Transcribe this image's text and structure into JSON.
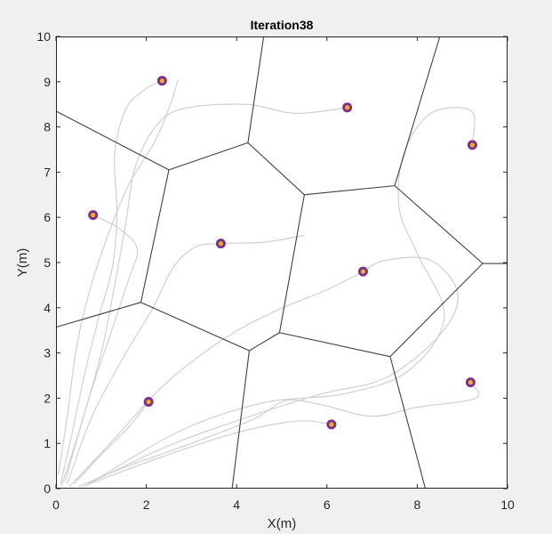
{
  "chart_data": {
    "type": "scatter",
    "title": "Iteration38",
    "xlabel": "X(m)",
    "ylabel": "Y(m)",
    "xlim": [
      0,
      10
    ],
    "ylim": [
      0,
      10
    ],
    "xticks": [
      0,
      2,
      4,
      6,
      8,
      10
    ],
    "yticks": [
      0,
      1,
      2,
      3,
      4,
      5,
      6,
      7,
      8,
      9,
      10
    ],
    "grid": false,
    "legend": "none",
    "colors": {
      "agent_outer": "#7e2f8e",
      "agent_inner": "#edb120",
      "voronoi_edge": "#404040",
      "trajectory": "#d0d0d0",
      "plot_background": "#ffffff",
      "figure_background": "#f0f0f0"
    },
    "agents": [
      {
        "x": 2.35,
        "y": 9.02
      },
      {
        "x": 6.45,
        "y": 8.43
      },
      {
        "x": 9.22,
        "y": 7.6
      },
      {
        "x": 0.82,
        "y": 6.05
      },
      {
        "x": 3.65,
        "y": 5.42
      },
      {
        "x": 6.8,
        "y": 4.8
      },
      {
        "x": 2.05,
        "y": 1.92
      },
      {
        "x": 6.1,
        "y": 1.42
      },
      {
        "x": 9.18,
        "y": 2.35
      }
    ],
    "voronoi_edges": [
      [
        [
          0,
          8.35
        ],
        [
          2.5,
          7.05
        ]
      ],
      [
        [
          2.5,
          7.05
        ],
        [
          4.25,
          7.65
        ]
      ],
      [
        [
          4.25,
          7.65
        ],
        [
          4.6,
          10
        ]
      ],
      [
        [
          4.25,
          7.65
        ],
        [
          5.5,
          6.5
        ]
      ],
      [
        [
          5.5,
          6.5
        ],
        [
          7.5,
          6.7
        ]
      ],
      [
        [
          7.5,
          6.7
        ],
        [
          8.5,
          10
        ]
      ],
      [
        [
          7.5,
          6.7
        ],
        [
          9.45,
          4.98
        ]
      ],
      [
        [
          9.45,
          4.98
        ],
        [
          10,
          4.98
        ]
      ],
      [
        [
          2.5,
          7.05
        ],
        [
          1.88,
          4.12
        ]
      ],
      [
        [
          1.88,
          4.12
        ],
        [
          0,
          3.57
        ]
      ],
      [
        [
          1.88,
          4.12
        ],
        [
          4.28,
          3.05
        ]
      ],
      [
        [
          4.28,
          3.05
        ],
        [
          4.95,
          3.45
        ]
      ],
      [
        [
          4.95,
          3.45
        ],
        [
          5.5,
          6.5
        ]
      ],
      [
        [
          4.95,
          3.45
        ],
        [
          7.4,
          2.92
        ]
      ],
      [
        [
          7.4,
          2.92
        ],
        [
          9.45,
          4.98
        ]
      ],
      [
        [
          7.4,
          2.92
        ],
        [
          8.18,
          0
        ]
      ],
      [
        [
          4.28,
          3.05
        ],
        [
          3.9,
          0
        ]
      ]
    ],
    "trajectories": [
      [
        [
          0.1,
          0.1
        ],
        [
          0.35,
          1.2
        ],
        [
          0.65,
          2.6
        ],
        [
          0.95,
          3.8
        ],
        [
          1.25,
          4.9
        ],
        [
          1.35,
          6.1
        ],
        [
          1.3,
          7.4
        ],
        [
          1.55,
          8.4
        ],
        [
          2.0,
          8.85
        ],
        [
          2.35,
          9.02
        ]
      ],
      [
        [
          0.12,
          0.05
        ],
        [
          0.55,
          1.4
        ],
        [
          1.0,
          3.0
        ],
        [
          1.3,
          4.5
        ],
        [
          1.55,
          5.9
        ],
        [
          1.75,
          7.1
        ],
        [
          2.2,
          8.0
        ],
        [
          2.8,
          8.4
        ],
        [
          4.2,
          8.5
        ],
        [
          5.3,
          8.3
        ],
        [
          6.45,
          8.43
        ]
      ],
      [
        [
          0.05,
          0.3
        ],
        [
          0.25,
          1.6
        ],
        [
          0.45,
          3.1
        ],
        [
          0.75,
          4.4
        ],
        [
          1.15,
          5.6
        ],
        [
          1.6,
          6.7
        ],
        [
          2.2,
          7.7
        ],
        [
          2.55,
          8.55
        ],
        [
          2.7,
          9.05
        ]
      ],
      [
        [
          0.2,
          0.15
        ],
        [
          0.7,
          1.9
        ],
        [
          1.2,
          3.4
        ],
        [
          1.6,
          4.6
        ],
        [
          1.8,
          5.3
        ],
        [
          1.4,
          5.75
        ],
        [
          0.82,
          6.05
        ]
      ],
      [
        [
          0.25,
          0.1
        ],
        [
          0.8,
          1.6
        ],
        [
          1.55,
          3.0
        ],
        [
          2.15,
          4.0
        ],
        [
          2.6,
          4.9
        ],
        [
          3.1,
          5.35
        ],
        [
          3.65,
          5.42
        ],
        [
          4.6,
          5.45
        ],
        [
          5.5,
          5.6
        ]
      ],
      [
        [
          0.3,
          0.05
        ],
        [
          1.2,
          1.0
        ],
        [
          2.4,
          2.3
        ],
        [
          3.7,
          3.3
        ],
        [
          4.8,
          3.9
        ],
        [
          6.0,
          4.4
        ],
        [
          6.8,
          4.8
        ]
      ],
      [
        [
          0.4,
          0.1
        ],
        [
          1.0,
          0.75
        ],
        [
          1.6,
          1.35
        ],
        [
          2.05,
          1.92
        ]
      ],
      [
        [
          0.5,
          0.05
        ],
        [
          1.6,
          0.5
        ],
        [
          3.0,
          1.0
        ],
        [
          4.4,
          1.55
        ],
        [
          5.1,
          1.95
        ],
        [
          5.9,
          1.85
        ],
        [
          7.0,
          1.6
        ],
        [
          8.0,
          1.8
        ],
        [
          9.3,
          2.0
        ],
        [
          9.18,
          2.35
        ]
      ],
      [
        [
          0.6,
          0.05
        ],
        [
          2.2,
          0.65
        ],
        [
          3.7,
          1.15
        ],
        [
          4.7,
          1.4
        ],
        [
          5.5,
          1.5
        ],
        [
          6.1,
          1.42
        ]
      ],
      [
        [
          0.7,
          0.1
        ],
        [
          2.5,
          0.95
        ],
        [
          4.3,
          1.6
        ],
        [
          5.9,
          2.1
        ],
        [
          7.3,
          2.45
        ],
        [
          8.5,
          3.4
        ],
        [
          8.9,
          4.3
        ],
        [
          8.3,
          5.05
        ],
        [
          7.3,
          5.05
        ],
        [
          6.8,
          4.8
        ]
      ],
      [
        [
          0.8,
          0.15
        ],
        [
          2.8,
          1.3
        ],
        [
          4.6,
          1.9
        ],
        [
          6.4,
          2.1
        ],
        [
          7.8,
          2.6
        ],
        [
          8.6,
          3.8
        ],
        [
          8.0,
          5.2
        ],
        [
          7.6,
          6.2
        ],
        [
          7.7,
          7.4
        ],
        [
          8.3,
          8.3
        ],
        [
          9.2,
          8.35
        ],
        [
          9.22,
          7.6
        ]
      ]
    ]
  }
}
